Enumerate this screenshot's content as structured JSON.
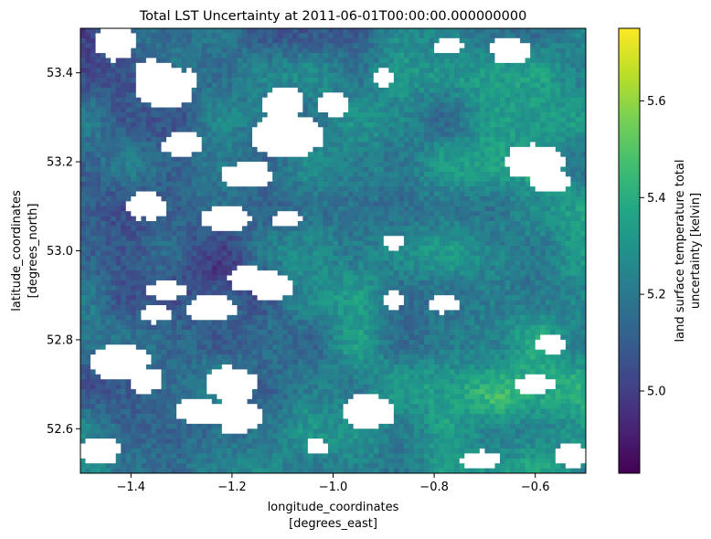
{
  "chart_data": {
    "type": "heatmap",
    "title": "Total LST Uncertainty at 2011-06-01T00:00:00.000000000",
    "xlabel": "longitude_coordinates",
    "xunits": "[degrees_east]",
    "ylabel": "latitude_coordinates",
    "yunits": "[degrees_north]",
    "xlim": [
      -1.5,
      -0.5
    ],
    "ylim": [
      52.5,
      53.5
    ],
    "xticks": [
      -1.4,
      -1.2,
      -1.0,
      -0.8,
      -0.6
    ],
    "xtick_labels": [
      "−1.4",
      "−1.2",
      "−1.0",
      "−0.8",
      "−0.6"
    ],
    "yticks": [
      52.6,
      52.8,
      53.0,
      53.2,
      53.4
    ],
    "ytick_labels": [
      "52.6",
      "52.8",
      "53.0",
      "53.2",
      "53.4"
    ],
    "colorbar": {
      "label_line1": "land surface temperature total",
      "label_line2": "uncertainty [kelvin]",
      "range": [
        4.83,
        5.75
      ],
      "ticks": [
        5.0,
        5.2,
        5.4,
        5.6
      ],
      "tick_labels": [
        "5.0",
        "5.2",
        "5.4",
        "5.6"
      ],
      "colormap": "viridis"
    },
    "grid": {
      "columns": 100,
      "rows": 90,
      "typical_value": 5.22,
      "range": [
        4.83,
        5.75
      ],
      "missing_value_color": "#ffffff",
      "note_higher_values_region": "east / south-east",
      "note_lower_values_region": "west-centre"
    }
  }
}
